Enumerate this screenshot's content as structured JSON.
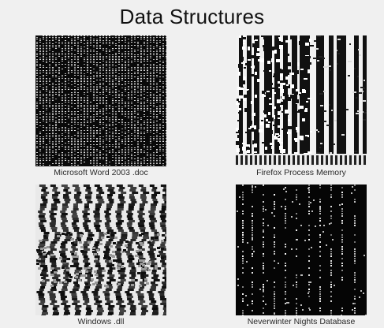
{
  "title": "Data Structures",
  "panels": [
    {
      "caption": "Microsoft Word 2003 .doc"
    },
    {
      "caption": "Firefox Process Memory"
    },
    {
      "caption": "Windows .dll"
    },
    {
      "caption": "Neverwinter Nights Database"
    }
  ]
}
